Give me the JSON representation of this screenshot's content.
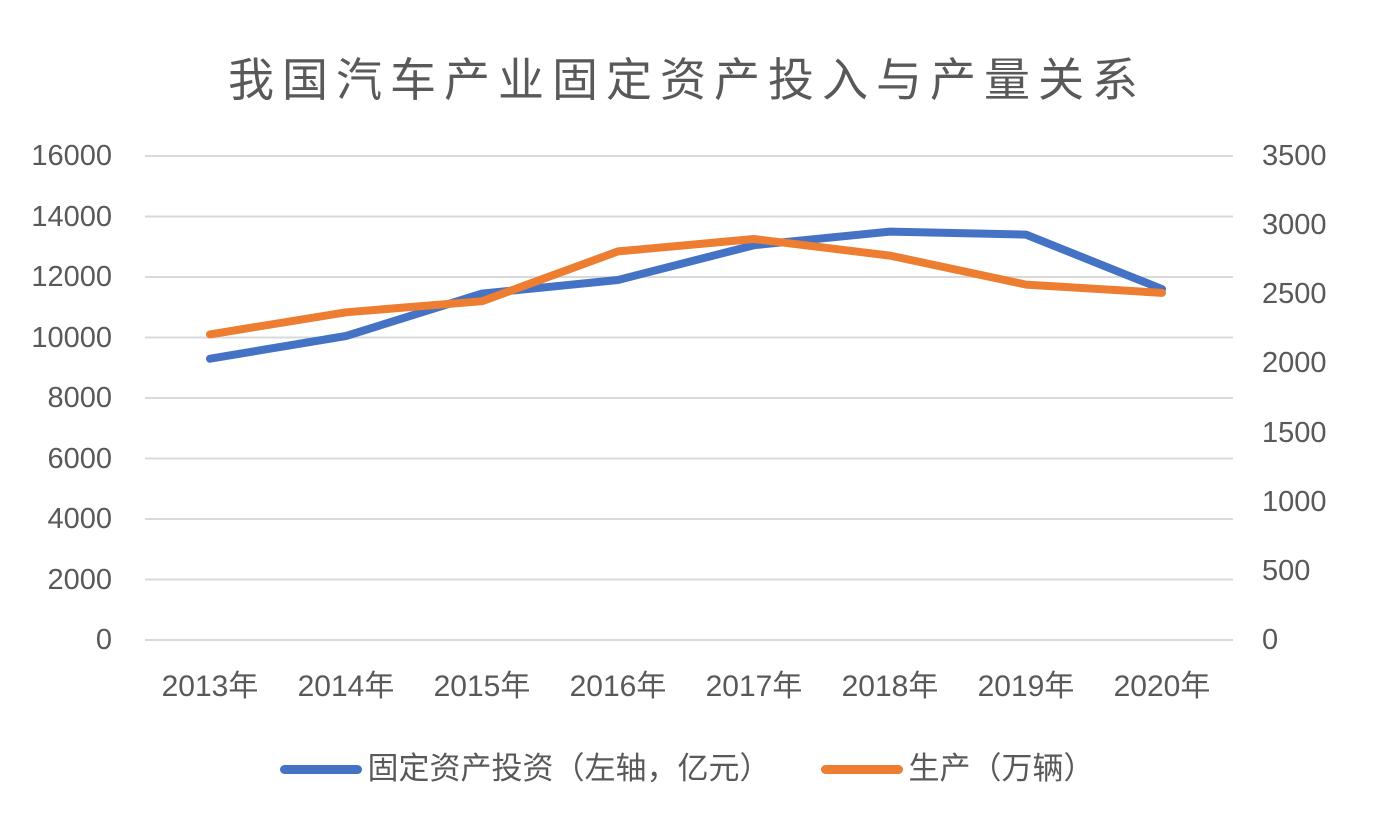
{
  "title": "我国汽车产业固定资产投入与产量关系",
  "chart_data": {
    "type": "line",
    "title": "我国汽车产业固定资产投入与产量关系",
    "categories": [
      "2013年",
      "2014年",
      "2015年",
      "2016年",
      "2017年",
      "2018年",
      "2019年",
      "2020年"
    ],
    "series": [
      {
        "name": "固定资产投资（左轴，亿元）",
        "axis": "left",
        "color": "#4472C4",
        "values": [
          9300,
          10050,
          11450,
          11900,
          13050,
          13500,
          13400,
          11600
        ]
      },
      {
        "name": "生产（万辆）",
        "axis": "right",
        "color": "#ED7D31",
        "values": [
          2210,
          2370,
          2450,
          2810,
          2900,
          2780,
          2570,
          2510
        ]
      }
    ],
    "left_axis": {
      "min": 0,
      "max": 16000,
      "step": 2000,
      "ticks": [
        "16000",
        "14000",
        "12000",
        "10000",
        "8000",
        "6000",
        "4000",
        "2000",
        "0"
      ]
    },
    "right_axis": {
      "min": 0,
      "max": 3500,
      "step": 500,
      "ticks": [
        "3500",
        "3000",
        "2500",
        "2000",
        "1500",
        "1000",
        "500",
        "0"
      ]
    },
    "grid": "horizontal",
    "legend_position": "bottom",
    "colors": {
      "grid": "#D9D9D9",
      "text": "#595959",
      "background": "#FFFFFF"
    }
  }
}
